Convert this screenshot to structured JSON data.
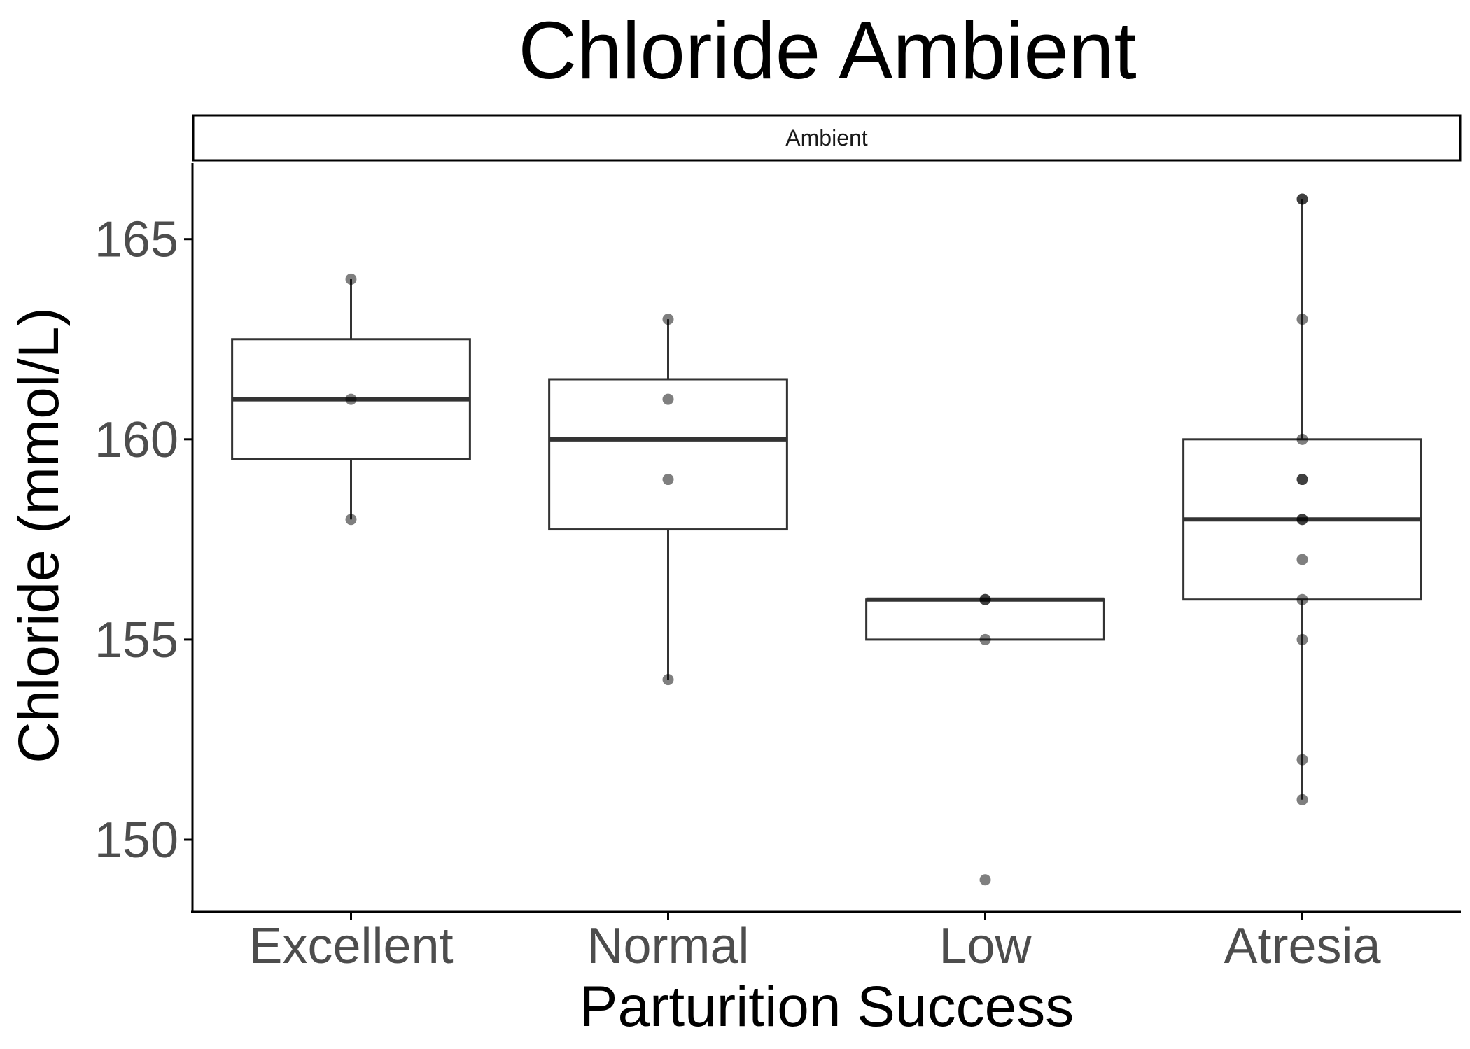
{
  "chart_data": {
    "type": "boxplot",
    "title": "Chloride Ambient",
    "facet_label": "Ambient",
    "xlabel": "Parturition Success",
    "ylabel": "Chloride (mmol/L)",
    "ylim": [
      148.2,
      166.9
    ],
    "yticks": [
      150,
      155,
      160,
      165
    ],
    "grid": false,
    "legend": "none",
    "colors": {
      "box_stroke": "#333333",
      "point_fill": "#000000",
      "axis": "#000000"
    },
    "categories": [
      "Excellent",
      "Normal",
      "Low",
      "Atresia"
    ],
    "boxes": [
      {
        "category": "Excellent",
        "whisker_low": 158,
        "q1": 159.5,
        "median": 161,
        "q3": 162.5,
        "whisker_high": 164,
        "points": [
          164,
          161,
          158
        ]
      },
      {
        "category": "Normal",
        "whisker_low": 154,
        "q1": 157.75,
        "median": 160,
        "q3": 161.5,
        "whisker_high": 163,
        "points": [
          163,
          161,
          159,
          154
        ]
      },
      {
        "category": "Low",
        "whisker_low": 155,
        "q1": 155,
        "median": 156,
        "q3": 156,
        "whisker_high": 156,
        "points": [
          156,
          156,
          155,
          149
        ]
      },
      {
        "category": "Atresia",
        "whisker_low": 151,
        "q1": 156,
        "median": 158,
        "q3": 160,
        "whisker_high": 166,
        "points": [
          166,
          166,
          163,
          160,
          159,
          159,
          158,
          158,
          157,
          156,
          155,
          152,
          151
        ]
      }
    ]
  }
}
